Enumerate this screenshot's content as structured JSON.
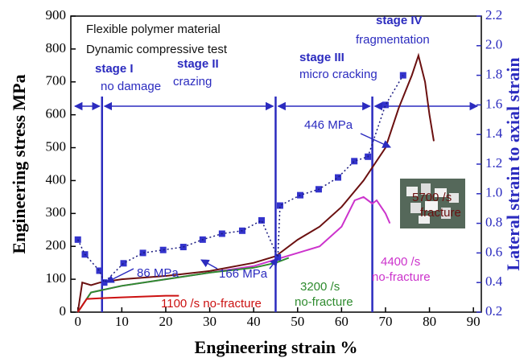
{
  "chart_data": {
    "type": "line",
    "x_label": "Engineering strain %",
    "y_label": "Engineering stress MPa",
    "y2_label": "Lateral strain to axial strain",
    "xlim": [
      -1.6,
      91.8
    ],
    "ylim": [
      0,
      900
    ],
    "y2lim": [
      0.2,
      2.2
    ],
    "xticks": [
      0,
      10,
      20,
      30,
      40,
      50,
      60,
      70,
      80,
      90
    ],
    "yticks": [
      0,
      100,
      200,
      300,
      400,
      500,
      600,
      700,
      800,
      900
    ],
    "y2ticks": [
      0.2,
      0.4,
      0.6,
      0.8,
      {
        "value": 1,
        "label": "1.0"
      },
      1.2,
      1.4,
      1.6,
      1.8,
      {
        "value": 2,
        "label": "2.0"
      },
      2.2
    ],
    "y2_color": "#2b2bbf",
    "stage_bounds": [
      5.5,
      45,
      67
    ],
    "series": [
      {
        "mode": "line",
        "color": "#6b1010",
        "x": [
          0,
          1,
          3,
          5,
          10,
          20,
          30,
          40,
          45,
          50,
          55,
          60,
          65,
          70,
          73,
          76,
          77.5,
          79,
          80,
          81
        ],
        "values": [
          0,
          90,
          82,
          90,
          100,
          110,
          125,
          150,
          170,
          220,
          260,
          320,
          400,
          500,
          620,
          720,
          780,
          700,
          600,
          520
        ]
      },
      {
        "mode": "line",
        "color": "#cc33cc",
        "x": [
          0,
          3,
          10,
          20,
          30,
          40,
          45,
          50,
          55,
          60,
          63,
          65,
          67,
          68,
          70,
          71
        ],
        "values": [
          0,
          60,
          80,
          100,
          120,
          140,
          160,
          180,
          200,
          260,
          340,
          350,
          330,
          340,
          300,
          270
        ]
      },
      {
        "mode": "line",
        "color": "#2e8b2e",
        "x": [
          0,
          3,
          10,
          20,
          30,
          40,
          45,
          48
        ],
        "values": [
          0,
          60,
          80,
          100,
          120,
          135,
          150,
          165
        ]
      },
      {
        "mode": "line",
        "color": "#cc1111",
        "x": [
          0,
          2,
          5,
          10,
          20,
          23
        ],
        "values": [
          0,
          40,
          42,
          45,
          50,
          50
        ]
      },
      {
        "mode": "markers",
        "axis": "y2",
        "color": "#3333cc",
        "x": [
          0,
          1.6,
          4.9,
          6,
          10.4,
          14.8,
          19.4,
          24,
          28.4,
          32.8,
          37.4,
          41.8,
          45.5,
          46,
          50.6,
          54.8,
          59.2,
          62.9,
          66,
          70,
          74
        ],
        "values": [
          0.69,
          0.59,
          0.48,
          0.4,
          0.53,
          0.6,
          0.62,
          0.64,
          0.69,
          0.73,
          0.75,
          0.82,
          0.57,
          0.92,
          0.99,
          1.03,
          1.11,
          1.22,
          1.25,
          1.6,
          1.8
        ]
      }
    ],
    "annotations": [
      {
        "text": "Flexible polymer material",
        "color": "#111111"
      },
      {
        "text": "Dynamic compressive test",
        "color": "#111111"
      },
      {
        "text": "stage I",
        "color": "#2b2bbf"
      },
      {
        "text": "no damage",
        "color": "#2b2bbf"
      },
      {
        "text": "stage II",
        "color": "#2b2bbf"
      },
      {
        "text": "crazing",
        "color": "#2b2bbf"
      },
      {
        "text": "stage III",
        "color": "#2b2bbf"
      },
      {
        "text": "micro cracking",
        "color": "#2b2bbf"
      },
      {
        "text": "stage IV",
        "color": "#2b2bbf"
      },
      {
        "text": "fragmentation",
        "color": "#2b2bbf"
      },
      {
        "text": "446 MPa",
        "color": "#2b2bbf"
      },
      {
        "text": "166 MPa",
        "color": "#2b2bbf"
      },
      {
        "text": "86 MPa",
        "color": "#2b2bbf"
      },
      {
        "text": "5700 /s",
        "color": "#6b1010"
      },
      {
        "text": "fracture",
        "color": "#6b1010"
      },
      {
        "text": "4400 /s",
        "color": "#cc33cc"
      },
      {
        "text": "no-fracture",
        "color": "#cc33cc"
      },
      {
        "text": "3200 /s",
        "color": "#2e8b2e"
      },
      {
        "text": "no-fracture",
        "color": "#2e8b2e"
      },
      {
        "text": "1100 /s no-fracture",
        "color": "#cc1111"
      }
    ]
  }
}
